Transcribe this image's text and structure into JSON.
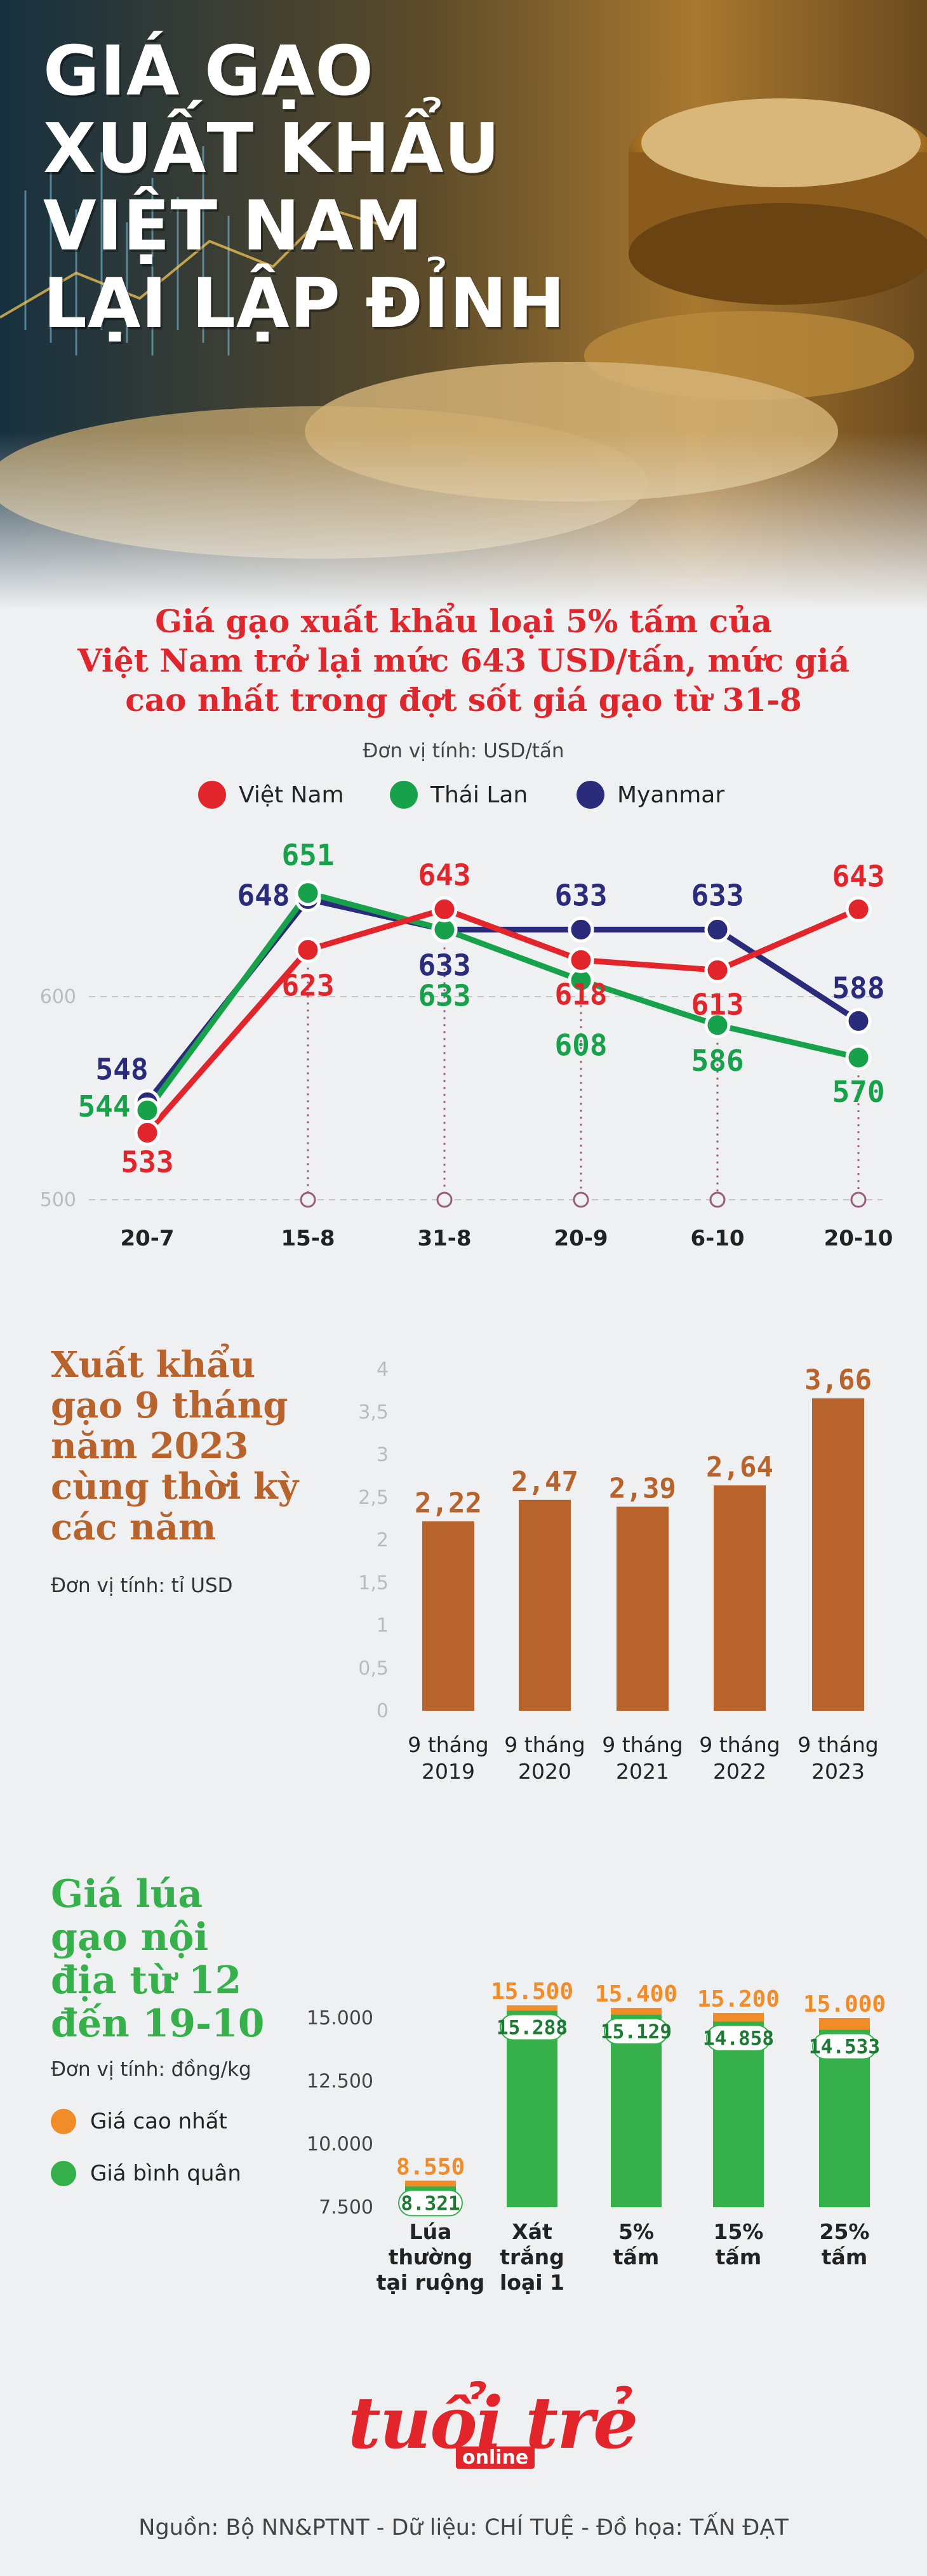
{
  "hero": {
    "title_lines": [
      "GIÁ GẠO",
      "XUẤT KHẨU",
      "VIỆT NAM",
      "LẠI LẬP ĐỈNH"
    ]
  },
  "section1": {
    "subtitle_lines": [
      "Giá gạo xuất khẩu loại 5% tấm của",
      "Việt Nam trở lại mức 643 USD/tấn, mức giá",
      "cao nhất trong đợt sốt giá gạo từ 31-8"
    ],
    "unit": "Đơn vị tính: USD/tấn",
    "legend": [
      "Việt Nam",
      "Thái Lan",
      "Myanmar"
    ]
  },
  "section2": {
    "title_lines": [
      "Xuất khẩu",
      "gạo 9 tháng",
      "năm 2023",
      "cùng thời kỳ",
      "các năm"
    ],
    "unit": "Đơn vị tính: tỉ USD"
  },
  "section3": {
    "title_lines": [
      "Giá lúa",
      "gạo nội",
      "địa từ 12",
      "đến 19-10"
    ],
    "unit": "Đơn vị tính: đồng/kg",
    "legend": [
      "Giá cao nhất",
      "Giá bình quân"
    ]
  },
  "logo": {
    "main": "tuổi trẻ",
    "sub": "online"
  },
  "source": "Nguồn: Bộ NN&PTNT - Dữ liệu: CHÍ TUỆ - Đồ họa: TẤN ĐẠT",
  "colors": {
    "vietnam": "#e1252b",
    "thailand": "#17a14a",
    "myanmar": "#2b2b7c",
    "bar_export": "#b8622c",
    "bar_max": "#f28c28",
    "bar_avg": "#35b04a",
    "subtitle": "#e0262d",
    "export_title": "#b8622c",
    "domestic_title": "#35b04a"
  },
  "chart_data": [
    {
      "type": "line",
      "categories": [
        "20-7",
        "15-8",
        "31-8",
        "20-9",
        "6-10",
        "20-10"
      ],
      "series": [
        {
          "name": "Việt Nam",
          "values": [
            533,
            623,
            643,
            618,
            613,
            643
          ],
          "labels": [
            "533",
            "623",
            "643",
            "618",
            "613",
            "643"
          ]
        },
        {
          "name": "Thái Lan",
          "values": [
            544,
            651,
            633,
            608,
            586,
            570
          ],
          "labels": [
            "544",
            "651",
            "633",
            "608",
            "586",
            "570"
          ]
        },
        {
          "name": "Myanmar",
          "values": [
            548,
            648,
            633,
            633,
            633,
            588
          ],
          "labels": [
            "548",
            "648",
            "633",
            "633",
            "633",
            "588"
          ]
        }
      ],
      "yticks": [
        "600",
        "500"
      ],
      "ylim": [
        500,
        660
      ],
      "grid": "dashed"
    },
    {
      "type": "bar",
      "categories": [
        [
          "9 tháng",
          "2019"
        ],
        [
          "9 tháng",
          "2020"
        ],
        [
          "9 tháng",
          "2021"
        ],
        [
          "9 tháng",
          "2022"
        ],
        [
          "9 tháng",
          "2023"
        ]
      ],
      "values": [
        2.22,
        2.47,
        2.39,
        2.64,
        3.66
      ],
      "labels": [
        "2,22",
        "2,47",
        "2,39",
        "2,64",
        "3,66"
      ],
      "yticks": [
        "0",
        "0,5",
        "1",
        "1,5",
        "2",
        "2,5",
        "3",
        "3,5",
        "4"
      ],
      "ylim": [
        0,
        4
      ]
    },
    {
      "type": "bar",
      "categories": [
        [
          "Lúa",
          "thường",
          "tại ruộng"
        ],
        [
          "Xát",
          "trắng",
          "loại 1"
        ],
        [
          "5%",
          "tấm"
        ],
        [
          "15%",
          "tấm"
        ],
        [
          "25%",
          "tấm"
        ]
      ],
      "series": [
        {
          "name": "Giá cao nhất",
          "values": [
            8550,
            15500,
            15400,
            15200,
            15000
          ],
          "labels": [
            "8.550",
            "15.500",
            "15.400",
            "15.200",
            "15.000"
          ]
        },
        {
          "name": "Giá bình quân",
          "values": [
            8321,
            15288,
            15129,
            14858,
            14533
          ],
          "labels": [
            "8.321",
            "15.288",
            "15.129",
            "14.858",
            "14.533"
          ]
        }
      ],
      "yticks": [
        "7.500",
        "10.000",
        "12.500",
        "15.000"
      ],
      "ylim": [
        7500,
        15600
      ]
    }
  ]
}
